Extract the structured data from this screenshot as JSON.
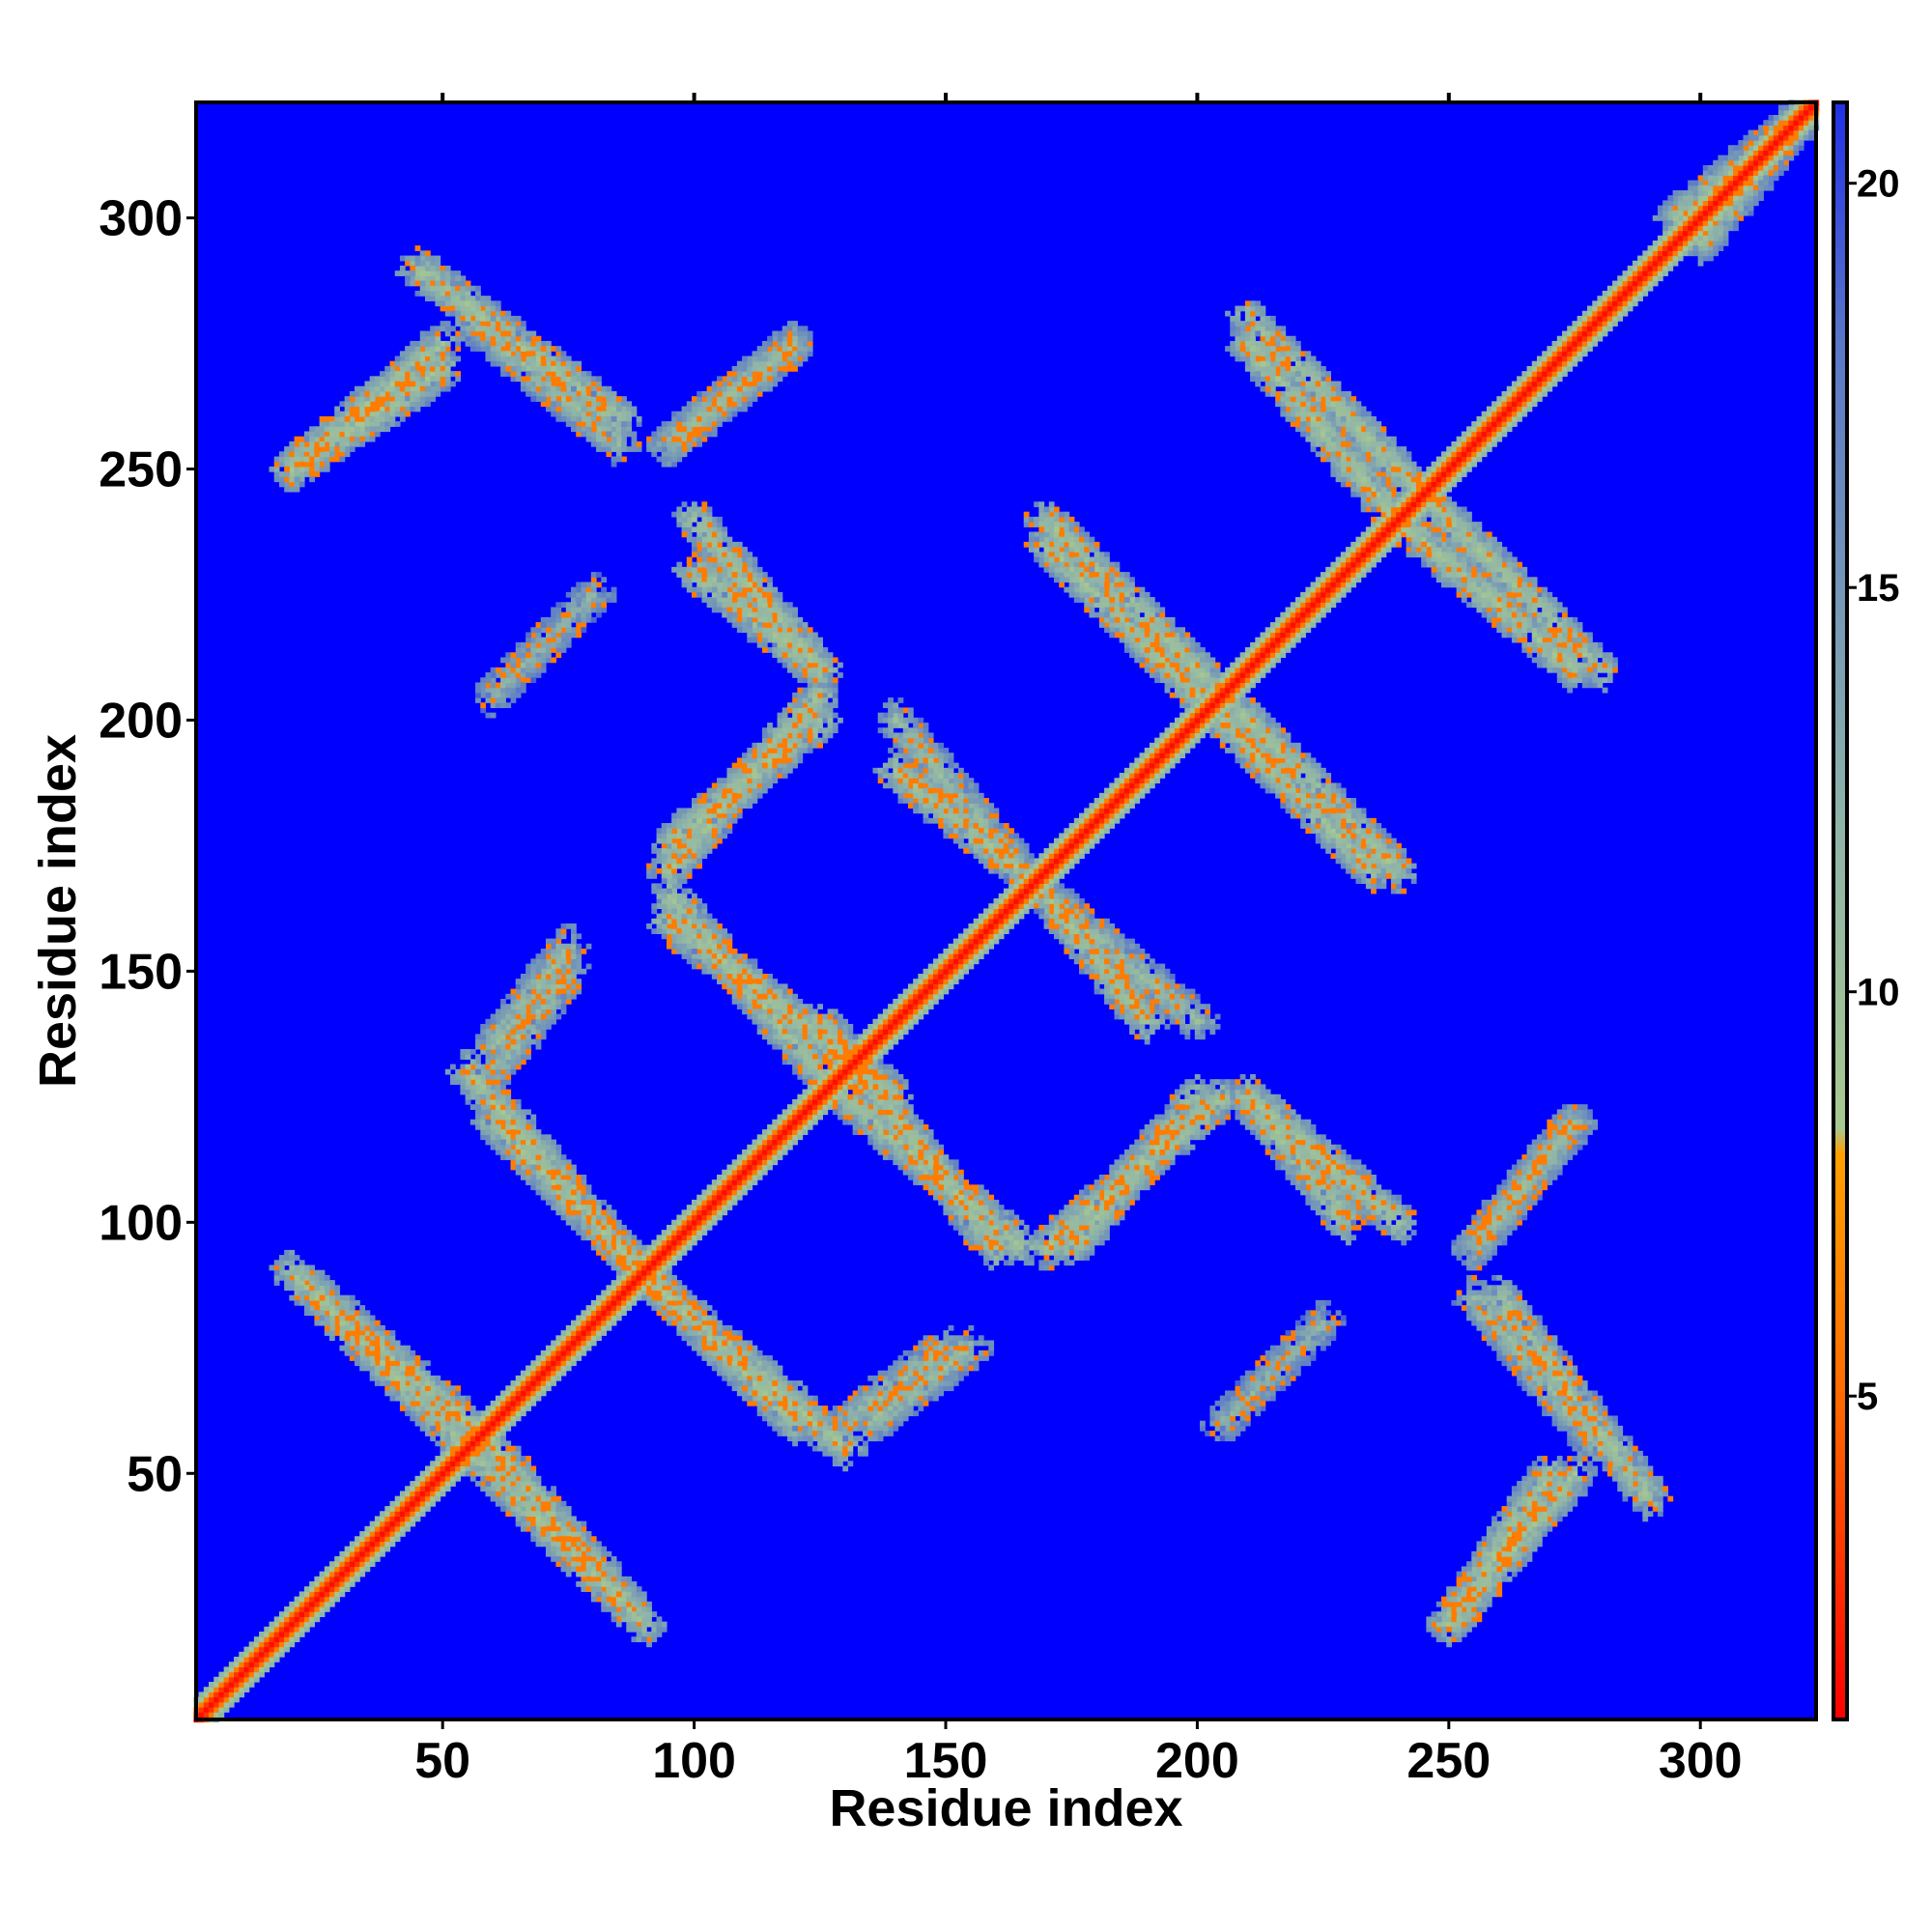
{
  "chart_data": {
    "type": "heatmap",
    "title": "",
    "xlabel": "Residue index",
    "ylabel": "Residue index",
    "xlim": [
      1,
      323
    ],
    "ylim": [
      1,
      323
    ],
    "x_ticks": [
      50,
      100,
      150,
      200,
      250,
      300
    ],
    "y_ticks": [
      50,
      100,
      150,
      200,
      250,
      300
    ],
    "colorbar": {
      "range": [
        1,
        21
      ],
      "ticks": [
        5,
        10,
        15,
        20
      ],
      "colors": [
        {
          "value": 1,
          "color": "#ff0000"
        },
        {
          "value": 5,
          "color": "#ff6a00"
        },
        {
          "value": 8,
          "color": "#ffa000"
        },
        {
          "value": 8.3,
          "color": "#a8c890"
        },
        {
          "value": 12,
          "color": "#8fb4a8"
        },
        {
          "value": 18,
          "color": "#5a78c8"
        },
        {
          "value": 21,
          "color": "#2030e8"
        }
      ]
    },
    "background_value": 21,
    "background_color": "#0000ff",
    "matrix_description_note": null,
    "diagonal": {
      "value": 2,
      "band_halfwidth": 4
    },
    "contact_segments": [
      {
        "x": [
          55,
          85
        ],
        "y": [
          55,
          25
        ],
        "value": 10
      },
      {
        "x": [
          20,
          55
        ],
        "y": [
          90,
          60
        ],
        "value": 10
      },
      {
        "x": [
          60,
          95
        ],
        "y": [
          120,
          85
        ],
        "value": 10
      },
      {
        "x": [
          95,
          130
        ],
        "y": [
          85,
          55
        ],
        "value": 10
      },
      {
        "x": [
          130,
          150
        ],
        "y": [
          60,
          75
        ],
        "value": 11
      },
      {
        "x": [
          95,
          140
        ],
        "y": [
          160,
          125
        ],
        "value": 10
      },
      {
        "x": [
          130,
          165
        ],
        "y": [
          125,
          95
        ],
        "value": 10
      },
      {
        "x": [
          170,
          205
        ],
        "y": [
          95,
          125
        ],
        "value": 10
      },
      {
        "x": [
          210,
          240
        ],
        "y": [
          125,
          100
        ],
        "value": 10
      },
      {
        "x": [
          60,
          75
        ],
        "y": [
          135,
          155
        ],
        "value": 11
      },
      {
        "x": [
          95,
          125
        ],
        "y": [
          175,
          200
        ],
        "value": 10
      },
      {
        "x": [
          100,
          125
        ],
        "y": [
          230,
          210
        ],
        "value": 10
      },
      {
        "x": [
          140,
          165
        ],
        "y": [
          190,
          170
        ],
        "value": 10
      },
      {
        "x": [
          170,
          200
        ],
        "y": [
          165,
          140
        ],
        "value": 11
      },
      {
        "x": [
          170,
          205
        ],
        "y": [
          240,
          205
        ],
        "value": 10
      },
      {
        "x": [
          205,
          235
        ],
        "y": [
          200,
          170
        ],
        "value": 10
      },
      {
        "x": [
          240,
          275
        ],
        "y": [
          240,
          210
        ],
        "value": 10
      },
      {
        "x": [
          210,
          245
        ],
        "y": [
          280,
          245
        ],
        "value": 10
      },
      {
        "x": [
          20,
          50
        ],
        "y": [
          250,
          275
        ],
        "value": 10
      },
      {
        "x": [
          45,
          85
        ],
        "y": [
          290,
          260
        ],
        "value": 10
      },
      {
        "x": [
          95,
          120
        ],
        "y": [
          255,
          275
        ],
        "value": 11
      },
      {
        "x": [
          250,
          270
        ],
        "y": [
          20,
          50
        ],
        "value": 10
      },
      {
        "x": [
          255,
          280
        ],
        "y": [
          85,
          55
        ],
        "value": 11
      },
      {
        "x": [
          255,
          275
        ],
        "y": [
          95,
          120
        ],
        "value": 11
      },
      {
        "x": [
          205,
          225
        ],
        "y": [
          60,
          80
        ],
        "value": 12
      },
      {
        "x": [
          295,
          320
        ],
        "y": [
          300,
          320
        ],
        "value": 11
      }
    ]
  }
}
